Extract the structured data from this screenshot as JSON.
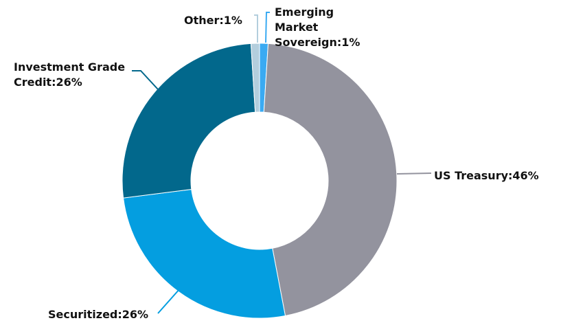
{
  "chart_data": {
    "type": "donut",
    "labels": [
      "Emerging Market Sovereign:1%",
      "US Treasury:46%",
      "Securitized:26%",
      "Investment Grade Credit:26%",
      "Other:1%"
    ],
    "values": [
      1,
      46,
      26,
      26,
      1
    ],
    "colors": [
      "#3aaaf2",
      "#93939e",
      "#049ee0",
      "#02688c",
      "#b3cedd"
    ]
  }
}
